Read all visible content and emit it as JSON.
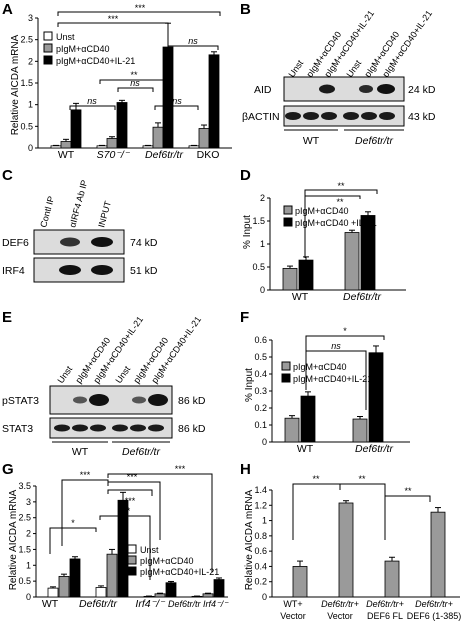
{
  "colors": {
    "unst": "#ffffff",
    "cd40": "#9a9a9a",
    "il21": "#000000",
    "blot_bg": "#dcdcdc",
    "band": "#1a1a1a"
  },
  "panels": {
    "A": {
      "letter": "A",
      "ylabel": "Relative AICDA mRNA",
      "legend": [
        "Unst",
        "pIgM+αCD40",
        "pIgM+αCD40+IL-21"
      ],
      "groups": [
        "WT",
        "S70⁻/⁻",
        "Def6tr/tr",
        "DKO"
      ],
      "sig": [
        "***",
        "***",
        "**",
        "ns",
        "ns",
        "ns",
        "ns"
      ]
    },
    "B": {
      "letter": "B",
      "lanes": [
        "Unst",
        "pIgM+αCD40",
        "pIgM+αCD40+IL-21",
        "Unst",
        "pIgM+αCD40",
        "pIgM+αCD40+IL-21"
      ],
      "rows": [
        "AID",
        "βACTIN"
      ],
      "sizes": [
        "24 kD",
        "43 kD"
      ],
      "groups": [
        "WT",
        "Def6tr/tr"
      ]
    },
    "C": {
      "letter": "C",
      "lanes": [
        "Contl IP",
        "αIRF4 Ab IP",
        "INPUT"
      ],
      "rows": [
        "DEF6",
        "IRF4"
      ],
      "sizes": [
        "74 kD",
        "51 kD"
      ]
    },
    "D": {
      "letter": "D",
      "ylabel": "% Input",
      "legend": [
        "pIgM+αCD40",
        "pIgM+αCD40 +IL-21"
      ],
      "groups": [
        "WT",
        "Def6tr/tr"
      ],
      "sig": [
        "**",
        "**"
      ]
    },
    "E": {
      "letter": "E",
      "lanes": [
        "Unst",
        "pIgM+αCD40",
        "pIgM+αCD40+IL-21",
        "Unst",
        "pIgM+αCD40",
        "pIgM+αCD40+IL-21"
      ],
      "rows": [
        "pSTAT3",
        "STAT3"
      ],
      "sizes": [
        "86 kD",
        "86 kD"
      ],
      "groups": [
        "WT",
        "Def6tr/tr"
      ]
    },
    "F": {
      "letter": "F",
      "ylabel": "% Input",
      "legend": [
        "pIgM+αCD40",
        "pIgM+αCD40+IL-21"
      ],
      "groups": [
        "WT",
        "Def6tr/tr"
      ],
      "sig": [
        "*",
        "ns"
      ]
    },
    "G": {
      "letter": "G",
      "ylabel": "Relative AICDA mRNA",
      "legend": [
        "Unst",
        "pIgM+αCD40",
        "pIgM+αCD40+IL-21"
      ],
      "groups": [
        "WT",
        "Def6tr/tr",
        "Irf4⁻/⁻",
        "Def6tr/tr Irf4⁻/⁻"
      ],
      "sig": [
        "***",
        "***",
        "*",
        "***",
        "***",
        "***"
      ]
    },
    "H": {
      "letter": "H",
      "ylabel": "Relative AICDA mRNA",
      "groups": [
        [
          "WT+",
          "Vector"
        ],
        [
          "Def6tr/tr+",
          "Vector"
        ],
        [
          "Def6tr/tr+",
          "DEF6 FL"
        ],
        [
          "Def6tr/tr+",
          "DEF6 (1-385)"
        ]
      ],
      "sig": [
        "**",
        "**",
        "**"
      ]
    }
  },
  "chart_data": [
    {
      "panel": "A",
      "type": "bar",
      "categories": [
        "WT",
        "S70-/-",
        "Def6tr/tr",
        "DKO"
      ],
      "series": [
        {
          "name": "Unst",
          "values": [
            0.05,
            0.05,
            0.05,
            0.05
          ],
          "err": [
            0.01,
            0.01,
            0.01,
            0.01
          ]
        },
        {
          "name": "pIgM+αCD40",
          "values": [
            0.15,
            0.22,
            0.48,
            0.45
          ],
          "err": [
            0.05,
            0.04,
            0.1,
            0.08
          ]
        },
        {
          "name": "pIgM+αCD40+IL-21",
          "values": [
            0.88,
            1.05,
            2.33,
            2.15
          ],
          "err": [
            0.15,
            0.05,
            0.55,
            0.07
          ]
        }
      ],
      "ylabel": "Relative AICDA mRNA",
      "ylim": [
        0,
        3
      ],
      "yticks": [
        0,
        0.5,
        1,
        1.5,
        2,
        2.5,
        3
      ]
    },
    {
      "panel": "D",
      "type": "bar",
      "categories": [
        "WT",
        "Def6tr/tr"
      ],
      "series": [
        {
          "name": "pIgM+αCD40",
          "values": [
            0.47,
            1.25
          ],
          "err": [
            0.05,
            0.05
          ]
        },
        {
          "name": "pIgM+αCD40 +IL-21",
          "values": [
            0.65,
            1.62
          ],
          "err": [
            0.07,
            0.08
          ]
        }
      ],
      "ylabel": "% Input",
      "ylim": [
        0,
        2
      ],
      "yticks": [
        0,
        0.5,
        1,
        1.5,
        2
      ]
    },
    {
      "panel": "F",
      "type": "bar",
      "categories": [
        "WT",
        "Def6tr/tr"
      ],
      "series": [
        {
          "name": "pIgM+αCD40",
          "values": [
            0.14,
            0.135
          ],
          "err": [
            0.015,
            0.015
          ]
        },
        {
          "name": "pIgM+αCD40+IL-21",
          "values": [
            0.27,
            0.525
          ],
          "err": [
            0.025,
            0.04
          ]
        }
      ],
      "ylabel": "% Input",
      "ylim": [
        0,
        0.6
      ],
      "yticks": [
        0,
        0.1,
        0.2,
        0.3,
        0.4,
        0.5,
        0.6
      ]
    },
    {
      "panel": "G",
      "type": "bar",
      "categories": [
        "WT",
        "Def6tr/tr",
        "Irf4-/-",
        "Def6tr/tr Irf4-/-"
      ],
      "series": [
        {
          "name": "Unst",
          "values": [
            0.28,
            0.3,
            0.02,
            0.02
          ],
          "err": [
            0.04,
            0.05,
            0.01,
            0.01
          ]
        },
        {
          "name": "pIgM+αCD40",
          "values": [
            0.65,
            1.35,
            0.1,
            0.1
          ],
          "err": [
            0.07,
            0.15,
            0.02,
            0.02
          ]
        },
        {
          "name": "pIgM+αCD40+IL-21",
          "values": [
            1.2,
            3.05,
            0.45,
            0.55
          ],
          "err": [
            0.07,
            0.25,
            0.04,
            0.05
          ]
        }
      ],
      "ylabel": "Relative AICDA mRNA",
      "ylim": [
        0,
        3.5
      ],
      "yticks": [
        0,
        0.5,
        1,
        1.5,
        2,
        2.5,
        3,
        3.5
      ]
    },
    {
      "panel": "H",
      "type": "bar",
      "categories": [
        "WT+ Vector",
        "Def6tr/tr+ Vector",
        "Def6tr/tr+ DEF6 FL",
        "Def6tr/tr+ DEF6 (1-385)"
      ],
      "series": [
        {
          "values": [
            0.4,
            1.23,
            0.47,
            1.11
          ],
          "err": [
            0.07,
            0.03,
            0.05,
            0.06
          ]
        }
      ],
      "ylabel": "Relative AICDA mRNA",
      "ylim": [
        0,
        1.4
      ],
      "yticks": [
        0,
        0.2,
        0.4,
        0.6,
        0.8,
        1,
        1.2,
        1.4
      ]
    }
  ]
}
